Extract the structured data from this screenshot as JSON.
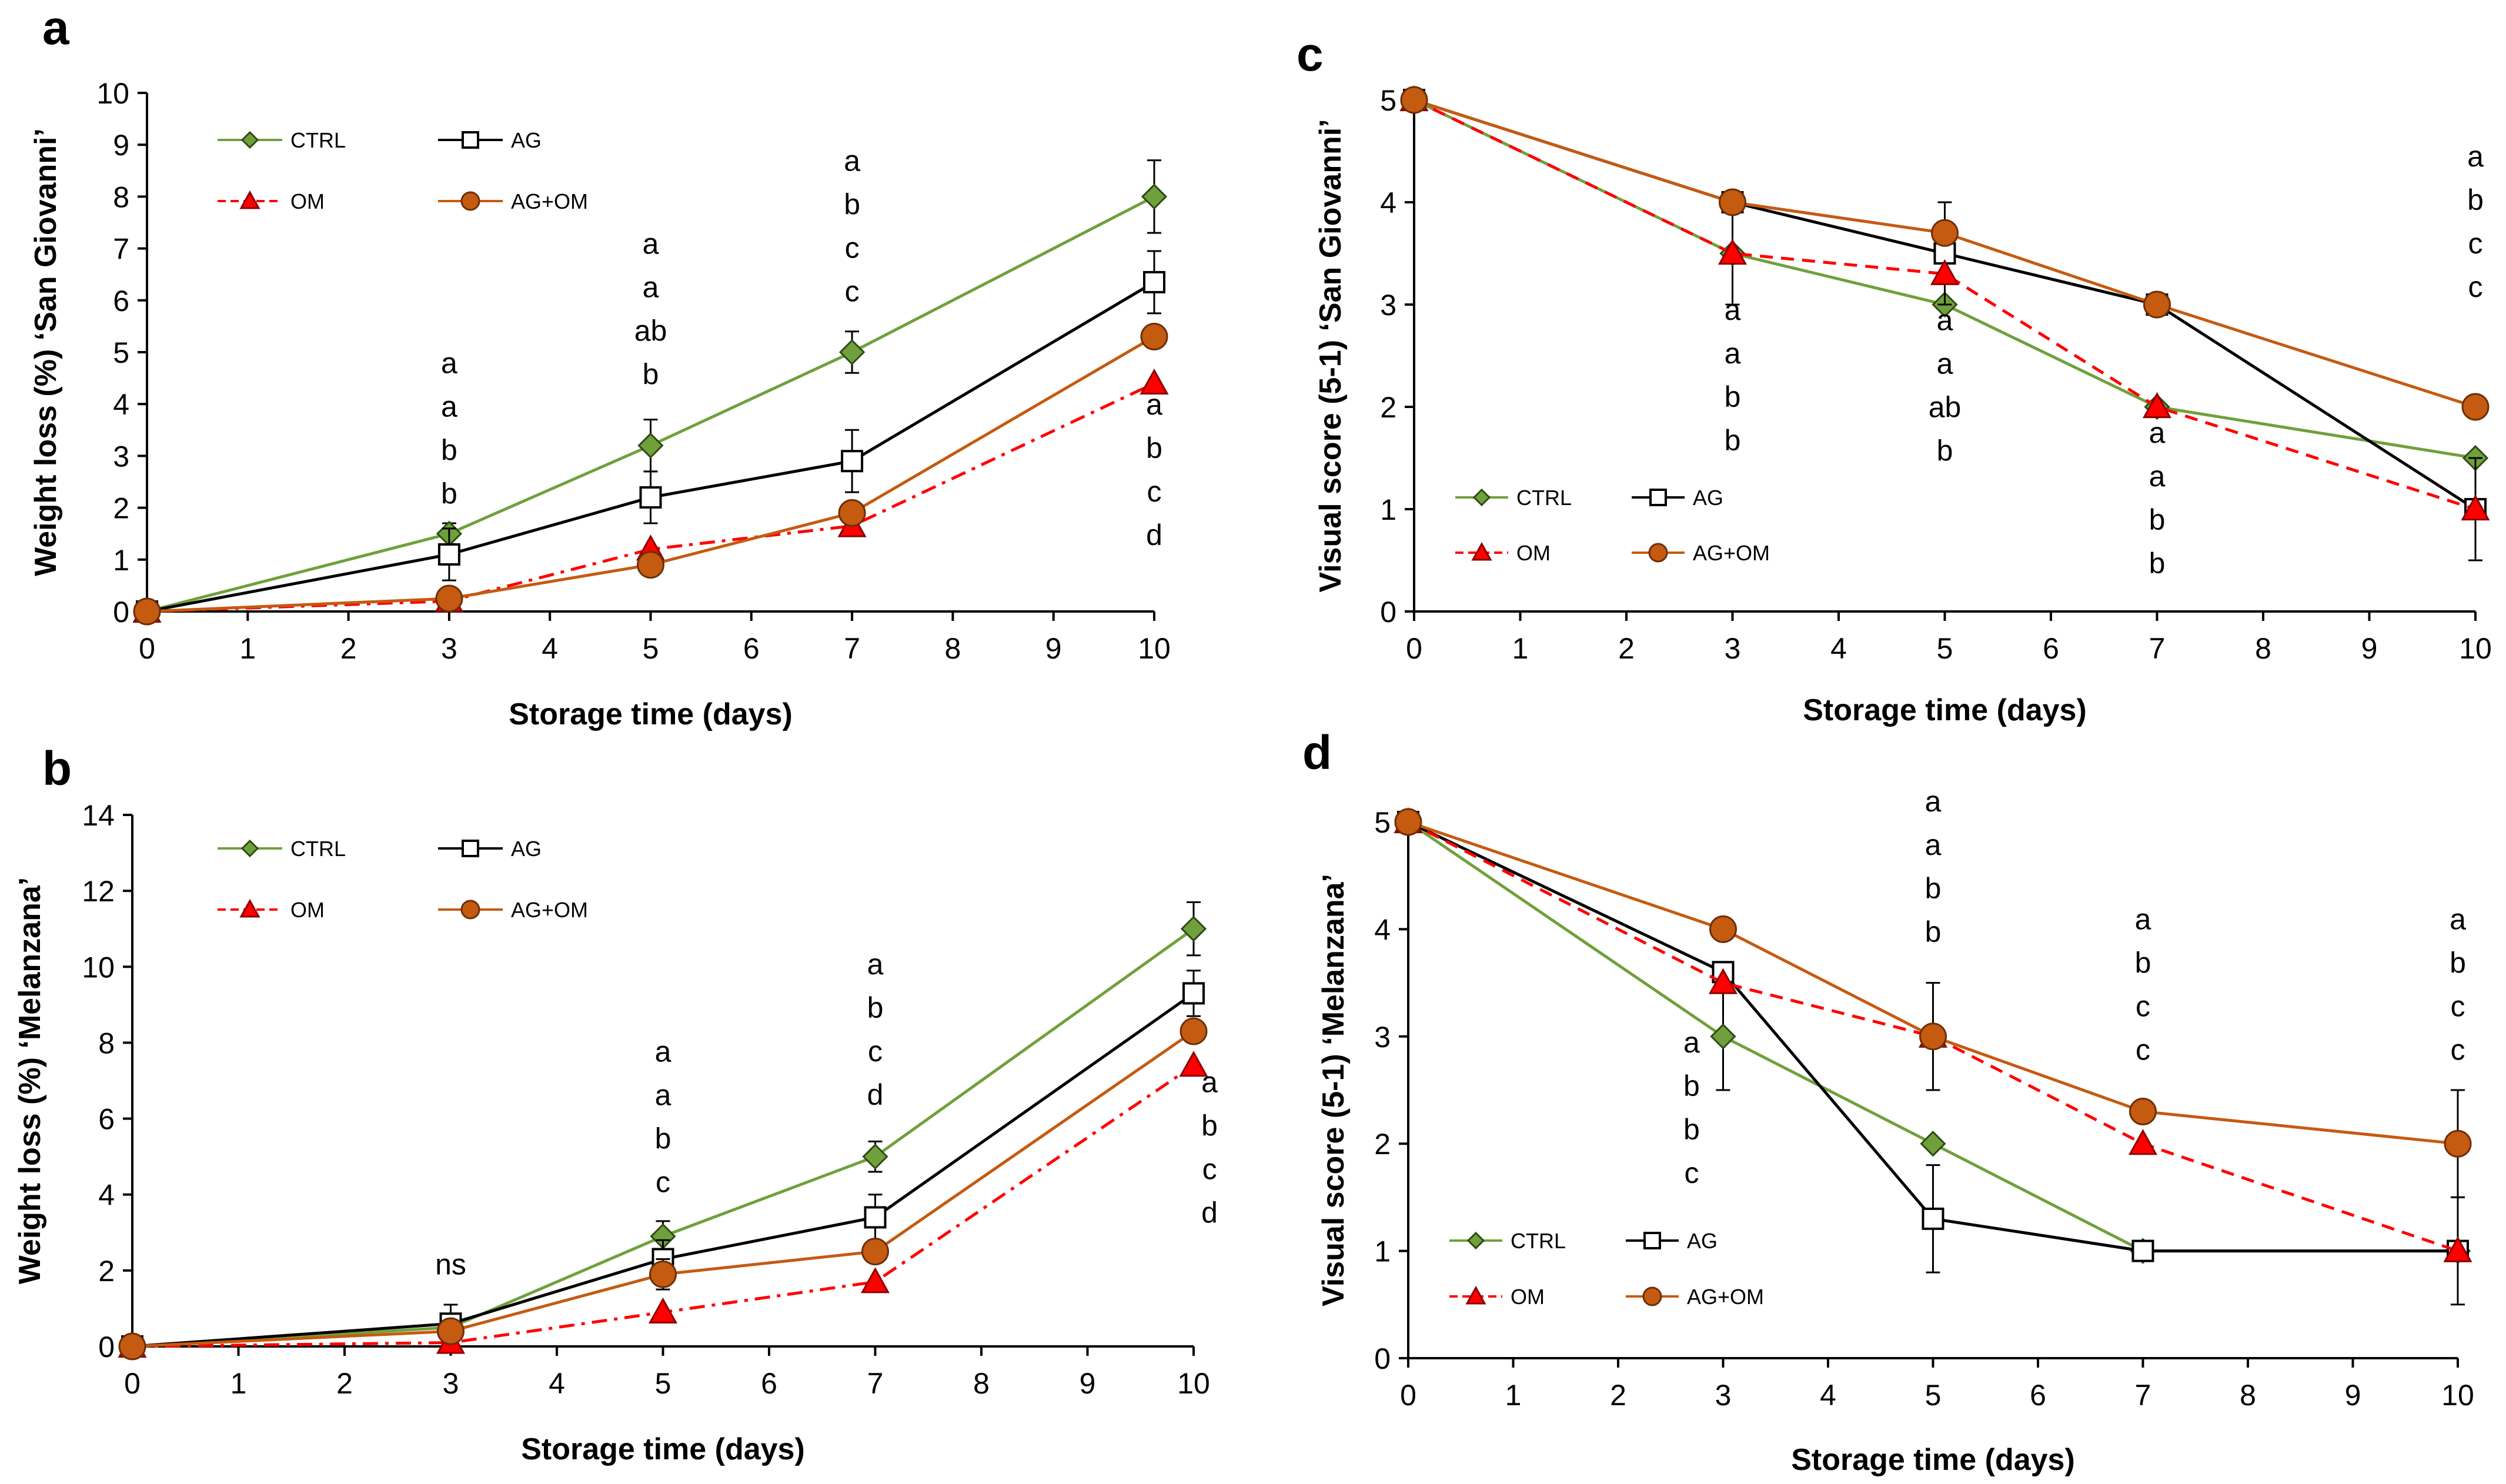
{
  "chart_data": [
    {
      "type": "line",
      "panel": "a",
      "title": "",
      "xlabel": "Storage time (days)",
      "ylabel": "Weight loss (%) ‘San Giovanni’",
      "xlim": [
        0,
        10
      ],
      "ylim": [
        0,
        10
      ],
      "xticks": [
        "0",
        "1",
        "2",
        "3",
        "4",
        "5",
        "6",
        "7",
        "8",
        "9",
        "10"
      ],
      "yticks": [
        "0",
        "1",
        "2",
        "3",
        "4",
        "5",
        "6",
        "7",
        "8",
        "9",
        "10"
      ],
      "legend": "top-left",
      "series": [
        {
          "name": "CTRL",
          "color": "#70a03c",
          "marker": "diamond",
          "dash": "solid",
          "x": [
            0,
            3,
            5,
            7,
            10
          ],
          "y": [
            0,
            1.5,
            3.2,
            5.0,
            8.0
          ],
          "err": [
            0,
            0.2,
            0.5,
            0.4,
            0.7
          ]
        },
        {
          "name": "AG",
          "color": "#000000",
          "marker": "square",
          "dash": "solid",
          "x": [
            0,
            3,
            5,
            7,
            10
          ],
          "y": [
            0,
            1.1,
            2.2,
            2.9,
            6.35
          ],
          "err": [
            0,
            0.5,
            0.5,
            0.6,
            0.6
          ]
        },
        {
          "name": "OM",
          "color": "#ff0000",
          "marker": "triangle",
          "dash": "dashdot",
          "x": [
            0,
            3,
            5,
            7,
            10
          ],
          "y": [
            0,
            0.2,
            1.2,
            1.65,
            4.4
          ],
          "err": [
            0,
            0,
            0,
            0,
            0
          ]
        },
        {
          "name": "AG+OM",
          "color": "#c55a11",
          "marker": "circle",
          "dash": "solid",
          "x": [
            0,
            3,
            5,
            7,
            10
          ],
          "y": [
            0,
            0.25,
            0.9,
            1.9,
            5.3
          ],
          "err": [
            0,
            0,
            0,
            0,
            0
          ]
        }
      ],
      "annotations": [
        {
          "x": 3,
          "y": 4.6,
          "lines": [
            "a",
            "a",
            "b",
            "b"
          ]
        },
        {
          "x": 5,
          "y": 6.9,
          "lines": [
            "a",
            "a",
            "ab",
            "b"
          ]
        },
        {
          "x": 7,
          "y": 8.5,
          "lines": [
            "a",
            "b",
            "c",
            "c"
          ]
        },
        {
          "x": 10,
          "y": 3.8,
          "lines": [
            "a",
            "b",
            "c",
            "d"
          ]
        }
      ]
    },
    {
      "type": "line",
      "panel": "b",
      "title": "",
      "xlabel": "Storage time (days)",
      "ylabel": "Weight loss (%) ‘Melanzana’",
      "xlim": [
        0,
        10
      ],
      "ylim": [
        0,
        14
      ],
      "xticks": [
        "0",
        "1",
        "2",
        "3",
        "4",
        "5",
        "6",
        "7",
        "8",
        "9",
        "10"
      ],
      "yticks": [
        "0",
        "2",
        "4",
        "6",
        "8",
        "10",
        "12",
        "14"
      ],
      "legend": "top-left",
      "series": [
        {
          "name": "CTRL",
          "color": "#70a03c",
          "marker": "diamond",
          "dash": "solid",
          "x": [
            0,
            3,
            5,
            7,
            10
          ],
          "y": [
            0,
            0.5,
            2.9,
            5.0,
            11.0
          ],
          "err": [
            0,
            0.3,
            0.4,
            0.4,
            0.7
          ]
        },
        {
          "name": "AG",
          "color": "#000000",
          "marker": "square",
          "dash": "solid",
          "x": [
            0,
            3,
            5,
            7,
            10
          ],
          "y": [
            0,
            0.6,
            2.3,
            3.4,
            9.3
          ],
          "err": [
            0,
            0.5,
            0.5,
            0.6,
            0.6
          ]
        },
        {
          "name": "OM",
          "color": "#ff0000",
          "marker": "triangle",
          "dash": "dashdot",
          "x": [
            0,
            3,
            5,
            7,
            10
          ],
          "y": [
            0,
            0.1,
            0.9,
            1.7,
            7.4
          ],
          "err": [
            0,
            0,
            0,
            0,
            0
          ]
        },
        {
          "name": "AG+OM",
          "color": "#c55a11",
          "marker": "circle",
          "dash": "solid",
          "x": [
            0,
            3,
            5,
            7,
            10
          ],
          "y": [
            0,
            0.4,
            1.9,
            2.5,
            8.3
          ],
          "err": [
            0,
            0,
            0.4,
            0,
            0
          ]
        }
      ],
      "annotations": [
        {
          "x": 3,
          "y": 1.9,
          "lines": [
            "ns"
          ]
        },
        {
          "x": 5,
          "y": 7.5,
          "lines": [
            "a",
            "a",
            "b",
            "c"
          ]
        },
        {
          "x": 7,
          "y": 9.8,
          "lines": [
            "a",
            "b",
            "c",
            "d"
          ]
        },
        {
          "x": 10.15,
          "y": 6.7,
          "lines": [
            "a",
            "b",
            "c",
            "d"
          ]
        }
      ]
    },
    {
      "type": "line",
      "panel": "c",
      "title": "",
      "xlabel": "Storage time (days)",
      "ylabel": "Visual score (5-1) ‘San Giovanni’",
      "xlim": [
        0,
        10
      ],
      "ylim": [
        0,
        5
      ],
      "xticks": [
        "0",
        "1",
        "2",
        "3",
        "4",
        "5",
        "6",
        "7",
        "8",
        "9",
        "10"
      ],
      "yticks": [
        "0",
        "1",
        "2",
        "3",
        "4",
        "5"
      ],
      "legend": "bottom-left",
      "series": [
        {
          "name": "CTRL",
          "color": "#70a03c",
          "marker": "diamond",
          "dash": "solid",
          "x": [
            0,
            3,
            5,
            7,
            10
          ],
          "y": [
            5,
            3.5,
            3.0,
            2.0,
            1.5
          ],
          "err": [
            0,
            0.5,
            0,
            0,
            0
          ]
        },
        {
          "name": "AG",
          "color": "#000000",
          "marker": "square",
          "dash": "solid",
          "x": [
            0,
            3,
            5,
            7,
            10
          ],
          "y": [
            5,
            4.0,
            3.5,
            3.0,
            1.0
          ],
          "err": [
            0,
            0,
            0.5,
            0,
            0.5
          ]
        },
        {
          "name": "OM",
          "color": "#ff0000",
          "marker": "triangle",
          "dash": "dashed",
          "x": [
            0,
            3,
            5,
            7,
            10
          ],
          "y": [
            5,
            3.5,
            3.3,
            2.0,
            1.0
          ],
          "err": [
            0,
            0,
            0,
            0,
            0
          ]
        },
        {
          "name": "AG+OM",
          "color": "#c55a11",
          "marker": "circle",
          "dash": "solid",
          "x": [
            0,
            3,
            5,
            7,
            10
          ],
          "y": [
            5,
            4.0,
            3.7,
            3.0,
            2.0
          ],
          "err": [
            0,
            0,
            0,
            0,
            0
          ]
        }
      ],
      "annotations": [
        {
          "x": 3,
          "y": 2.85,
          "lines": [
            "a",
            "a",
            "b",
            "b"
          ]
        },
        {
          "x": 5,
          "y": 2.75,
          "lines": [
            "a",
            "a",
            "ab",
            "b"
          ]
        },
        {
          "x": 7,
          "y": 1.65,
          "lines": [
            "a",
            "a",
            "b",
            "b"
          ]
        },
        {
          "x": 10,
          "y": 4.35,
          "lines": [
            "a",
            "b",
            "c",
            "c"
          ]
        }
      ]
    },
    {
      "type": "line",
      "panel": "d",
      "title": "",
      "xlabel": "Storage time (days)",
      "ylabel": "Visual score (5-1) ‘Melanzana’",
      "xlim": [
        0,
        10
      ],
      "ylim": [
        0,
        5
      ],
      "xticks": [
        "0",
        "1",
        "2",
        "3",
        "4",
        "5",
        "6",
        "7",
        "8",
        "9",
        "10"
      ],
      "yticks": [
        "0",
        "1",
        "2",
        "3",
        "4",
        "5"
      ],
      "legend": "bottom-left",
      "series": [
        {
          "name": "CTRL",
          "color": "#70a03c",
          "marker": "diamond",
          "dash": "solid",
          "x": [
            0,
            3,
            5,
            7,
            10
          ],
          "y": [
            5,
            3.0,
            2.0,
            1.0,
            1.0
          ],
          "err": [
            0,
            0.5,
            0,
            0,
            0
          ]
        },
        {
          "name": "AG",
          "color": "#000000",
          "marker": "square",
          "dash": "solid",
          "x": [
            0,
            3,
            5,
            7,
            10
          ],
          "y": [
            5,
            3.6,
            1.3,
            1.0,
            1.0
          ],
          "err": [
            0,
            0,
            0.5,
            0,
            0
          ]
        },
        {
          "name": "OM",
          "color": "#ff0000",
          "marker": "triangle",
          "dash": "dashed",
          "x": [
            0,
            3,
            5,
            7,
            10
          ],
          "y": [
            5,
            3.5,
            3.0,
            2.0,
            1.0
          ],
          "err": [
            0,
            0,
            0,
            0,
            0.5
          ]
        },
        {
          "name": "AG+OM",
          "color": "#c55a11",
          "marker": "circle",
          "dash": "solid",
          "x": [
            0,
            3,
            5,
            7,
            10
          ],
          "y": [
            5,
            4.0,
            3.0,
            2.3,
            2.0
          ],
          "err": [
            0,
            0,
            0.5,
            0,
            0.5
          ]
        }
      ],
      "annotations": [
        {
          "x": 2.7,
          "y": 2.85,
          "lines": [
            "a",
            "b",
            "b",
            "c"
          ]
        },
        {
          "x": 5,
          "y": 5.1,
          "lines": [
            "a",
            "a",
            "b",
            "b"
          ]
        },
        {
          "x": 7,
          "y": 4.0,
          "lines": [
            "a",
            "b",
            "c",
            "c"
          ]
        },
        {
          "x": 10,
          "y": 4.0,
          "lines": [
            "a",
            "b",
            "c",
            "c"
          ]
        }
      ]
    }
  ]
}
